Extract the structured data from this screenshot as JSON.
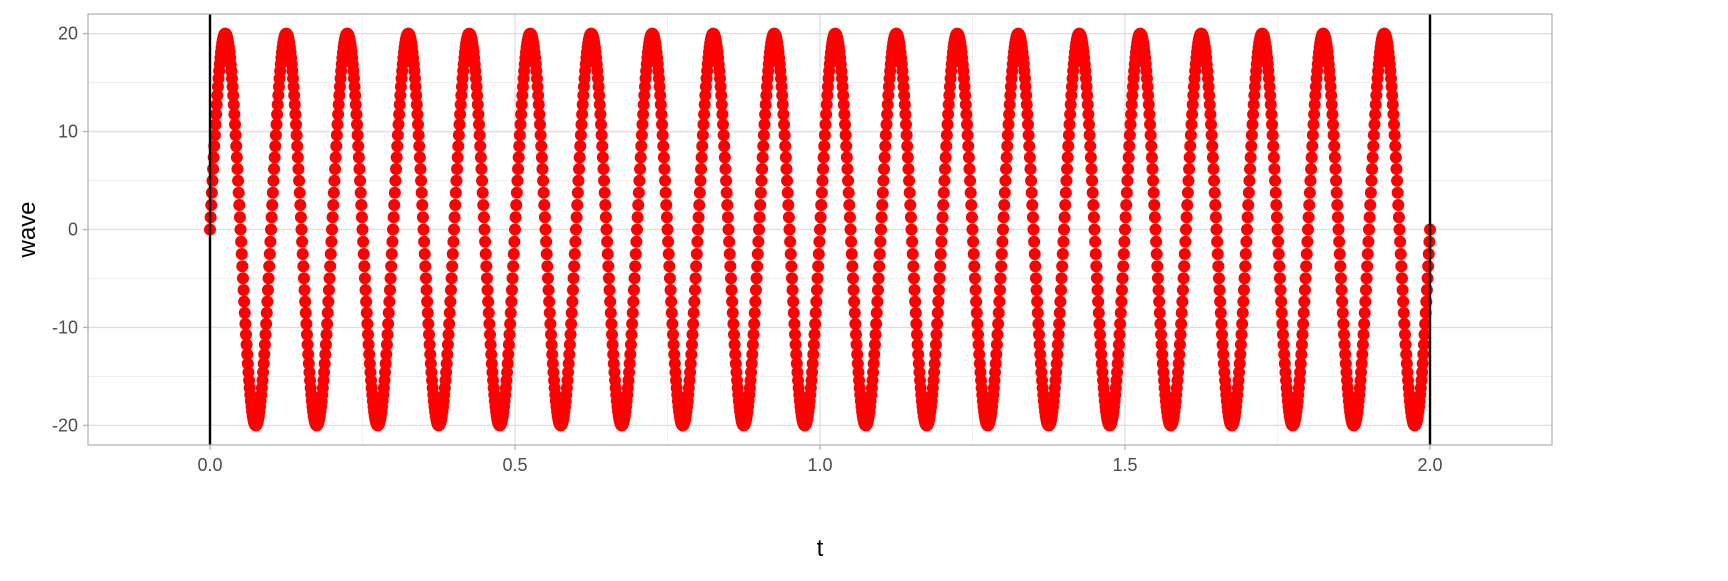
{
  "chart_data": {
    "type": "scatter",
    "title": "",
    "xlabel": "t",
    "ylabel": "wave",
    "xlim": [
      -0.2,
      2.2
    ],
    "ylim": [
      -22,
      22
    ],
    "x_ticks": [
      0.0,
      0.5,
      1.0,
      1.5,
      2.0
    ],
    "x_tick_labels": [
      "0.0",
      "0.5",
      "1.0",
      "1.5",
      "2.0"
    ],
    "y_ticks": [
      -20,
      -10,
      0,
      10,
      20
    ],
    "y_tick_labels": [
      "-20",
      "-10",
      "0",
      "10",
      "20"
    ],
    "grid": true,
    "series": [
      {
        "function": "wave = 20 * sin(2*pi*10*t)",
        "amplitude": 20,
        "frequency": 10,
        "t_start": 0,
        "t_end": 2,
        "t_step": 0.001,
        "color": "#FF0000"
      }
    ],
    "vertical_lines": [
      {
        "x": 0,
        "color": "#000000"
      },
      {
        "x": 2,
        "color": "#000000"
      }
    ],
    "legend": "none"
  }
}
